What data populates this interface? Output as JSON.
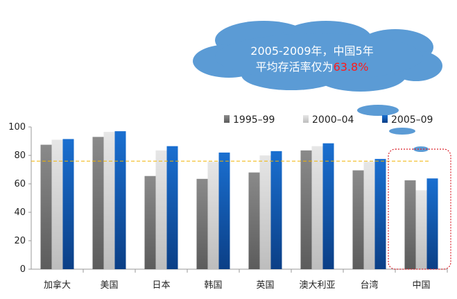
{
  "chart_data": {
    "type": "bar",
    "categories": [
      "加拿大",
      "美国",
      "日本",
      "韩国",
      "英国",
      "澳大利亚",
      "台湾",
      "中国"
    ],
    "series": [
      {
        "name": "1995–99",
        "values": [
          87.5,
          93.0,
          65.5,
          63.5,
          68.0,
          83.5,
          69.5,
          62.5
        ],
        "color": "#777777"
      },
      {
        "name": "2000–04",
        "values": [
          91.0,
          96.5,
          83.5,
          75.5,
          80.0,
          86.5,
          75.5,
          55.5
        ],
        "color": "#d6d6d6"
      },
      {
        "name": "2005–09",
        "values": [
          91.5,
          97.0,
          86.5,
          82.0,
          83.0,
          88.5,
          77.5,
          63.8
        ],
        "color": "#1561b8"
      }
    ],
    "ylim": [
      0,
      100
    ],
    "yticks": [
      "0",
      "20",
      "40",
      "60",
      "80",
      "100"
    ],
    "reference_line": {
      "value": 76,
      "color": "#f0b400"
    },
    "highlight_category": "中国",
    "legend_position": "top-right",
    "annotation": {
      "line1": "2005-2009年，中国5年",
      "line2_prefix": "平均存活率仅为",
      "line2_highlight": "63.8%",
      "highlight_color": "#ff1a1a",
      "cloud_color": "#5b9bd5"
    }
  }
}
